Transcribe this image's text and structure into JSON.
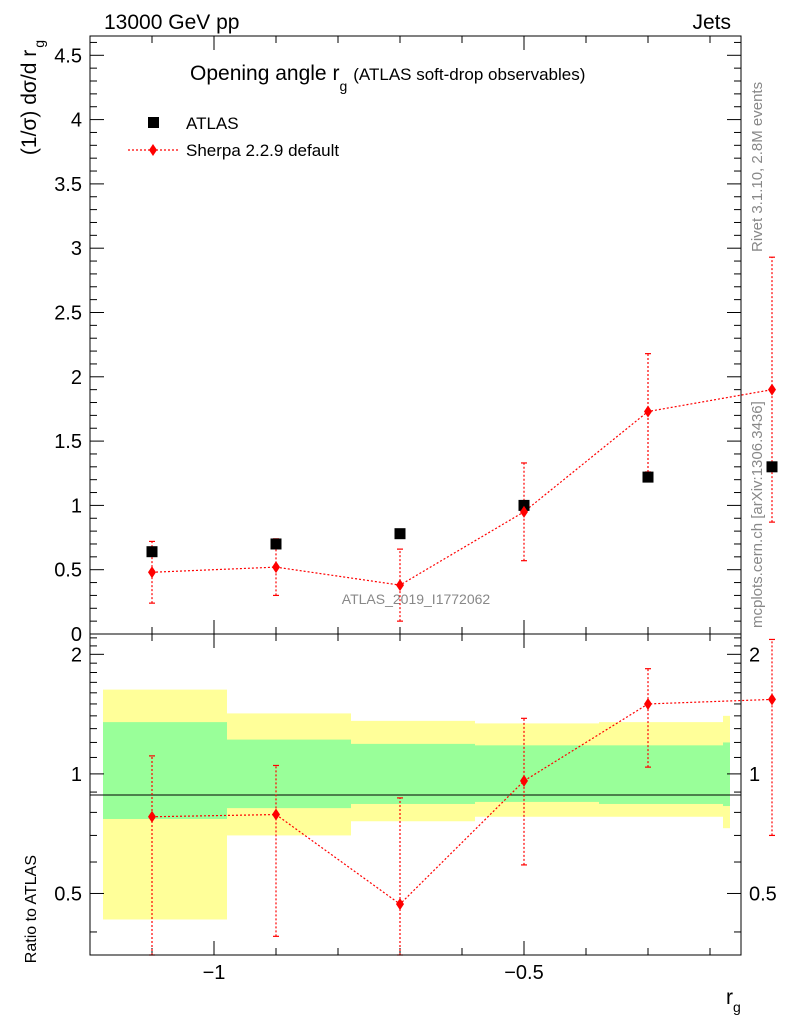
{
  "header": {
    "energy_label": "13000 GeV pp",
    "process_label": "Jets",
    "side_label_rivet": "Rivet 3.1.10,  2.8M events",
    "side_label_mcplots": "mcplots.cern.ch [arXiv:1306.3436]"
  },
  "chart_data": [
    {
      "type": "scatter",
      "panel": "main",
      "title": "Opening angle r",
      "title_subscript": "g",
      "title_suffix": "(ATLAS soft-drop observables)",
      "ylabel": "(1/σ) dσ/d r",
      "ylabel_subscript": "g",
      "xlim": [
        -1.2,
        -0.15
      ],
      "ylim": [
        0,
        4.65
      ],
      "x_major_ticks": [
        -1,
        -0.5
      ],
      "y_ticks": [
        0,
        0.5,
        1,
        1.5,
        2,
        2.5,
        3,
        3.5,
        4,
        4.5
      ],
      "y_tick_labels": [
        "0",
        "0.5",
        "1",
        "1.5",
        "2",
        "2.5",
        "3",
        "3.5",
        "4",
        "4.5"
      ],
      "watermark": "ATLAS_2019_I1772062",
      "legend": [
        {
          "name": "ATLAS",
          "marker": "square",
          "color": "#000000"
        },
        {
          "name": "Sherpa 2.2.9 default",
          "marker": "diamond",
          "color": "#ff0000"
        }
      ],
      "series": [
        {
          "name": "ATLAS",
          "x": [
            -1.1,
            -0.9,
            -0.7,
            -0.5,
            -0.3,
            -0.1
          ],
          "y": [
            0.64,
            0.7,
            0.78,
            1.0,
            1.22,
            1.3
          ]
        },
        {
          "name": "Sherpa 2.2.9 default",
          "x": [
            -1.1,
            -0.9,
            -0.7,
            -0.5,
            -0.3,
            -0.1
          ],
          "y": [
            0.48,
            0.52,
            0.38,
            0.95,
            1.73,
            1.9
          ],
          "yerr_low": [
            0.24,
            0.22,
            0.28,
            0.38,
            0.47,
            1.03
          ],
          "yerr_high": [
            0.24,
            0.22,
            0.28,
            0.38,
            0.45,
            1.03
          ]
        }
      ]
    },
    {
      "type": "scatter",
      "panel": "ratio",
      "ylabel": "Ratio to ATLAS",
      "xlabel": "r",
      "xlabel_subscript": "g",
      "xlim": [
        -1.2,
        -0.15
      ],
      "ylim": [
        0.35,
        2.25
      ],
      "x_ticks": [
        -1,
        -0.5
      ],
      "x_tick_labels": [
        "−1",
        "−0.5"
      ],
      "y_ticks": [
        0.5,
        1,
        2
      ],
      "y_tick_labels": [
        "0.5",
        "1",
        "2"
      ],
      "uncertainty_bands": {
        "bin_edges": [
          -1.2,
          -1.0,
          -0.8,
          -0.6,
          -0.4,
          -0.2,
          -0.15
        ],
        "inner_low": [
          0.77,
          0.82,
          0.84,
          0.85,
          0.84,
          0.83
        ],
        "inner_high": [
          1.35,
          1.22,
          1.19,
          1.18,
          1.18,
          1.2
        ],
        "outer_low": [
          0.43,
          0.7,
          0.76,
          0.78,
          0.78,
          0.73
        ],
        "outer_high": [
          1.63,
          1.42,
          1.36,
          1.34,
          1.35,
          1.4
        ],
        "inner_color": "#99ff99",
        "outer_color": "#ffff99"
      },
      "series": [
        {
          "name": "Sherpa 2.2.9 default",
          "x": [
            -1.1,
            -0.9,
            -0.7,
            -0.5,
            -0.3,
            -0.1
          ],
          "y": [
            0.78,
            0.79,
            0.47,
            0.96,
            1.5,
            1.54
          ],
          "yerr_low": [
            0.44,
            0.4,
            0.36,
            0.37,
            0.46,
            0.84
          ],
          "yerr_high": [
            0.33,
            0.26,
            0.4,
            0.42,
            0.34,
            0.64
          ]
        }
      ]
    }
  ]
}
